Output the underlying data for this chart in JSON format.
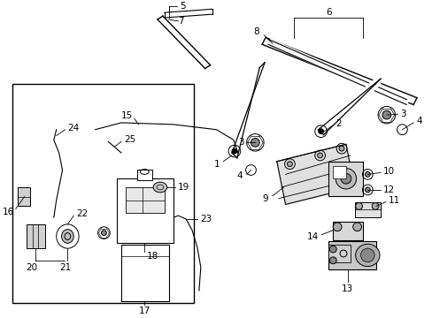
{
  "background_color": "#ffffff",
  "line_color": "#000000",
  "text_color": "#000000",
  "figsize": [
    4.89,
    3.6
  ],
  "dpi": 100
}
